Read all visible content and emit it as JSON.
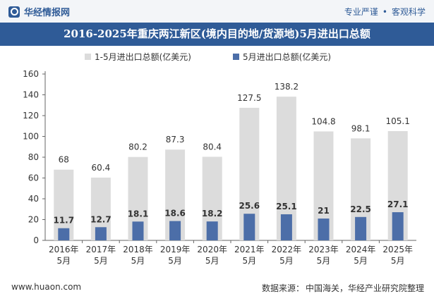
{
  "header": {
    "brand": "华经情报网",
    "logo_icon": "huajing-logo-icon",
    "tagline_left": "专业严谨",
    "tagline_right": "客观科学"
  },
  "chart_data": {
    "type": "bar",
    "title": "2016-2025年重庆两江新区(境内目的地/货源地)5月进出口总额",
    "categories": [
      "2016年\n5月",
      "2017年\n5月",
      "2018年\n5月",
      "2019年\n5月",
      "2020年\n5月",
      "2021年\n5月",
      "2022年\n5月",
      "2023年\n5月",
      "2024年\n5月",
      "2025年\n5月"
    ],
    "series": [
      {
        "name": "1-5月进出口总额(亿美元)",
        "color": "#dcdcdc",
        "values": [
          68,
          60.4,
          80.2,
          87.3,
          80.4,
          127.5,
          138.2,
          104.8,
          98.1,
          105.1
        ]
      },
      {
        "name": "5月进出口总额(亿美元)",
        "color": "#4c6ea8",
        "values": [
          11.7,
          12.7,
          18.1,
          18.6,
          18.2,
          25.6,
          25.1,
          21,
          22.5,
          27.1
        ]
      }
    ],
    "ylim": [
      0,
      160
    ],
    "yticks": [
      0,
      20,
      40,
      60,
      80,
      100,
      120,
      140,
      160
    ],
    "legend_position": "top",
    "grid": false
  },
  "footer": {
    "website": "www.huaon.com",
    "source_label": "数据来源：",
    "source_value": "中国海关，华经产业研究院整理"
  }
}
